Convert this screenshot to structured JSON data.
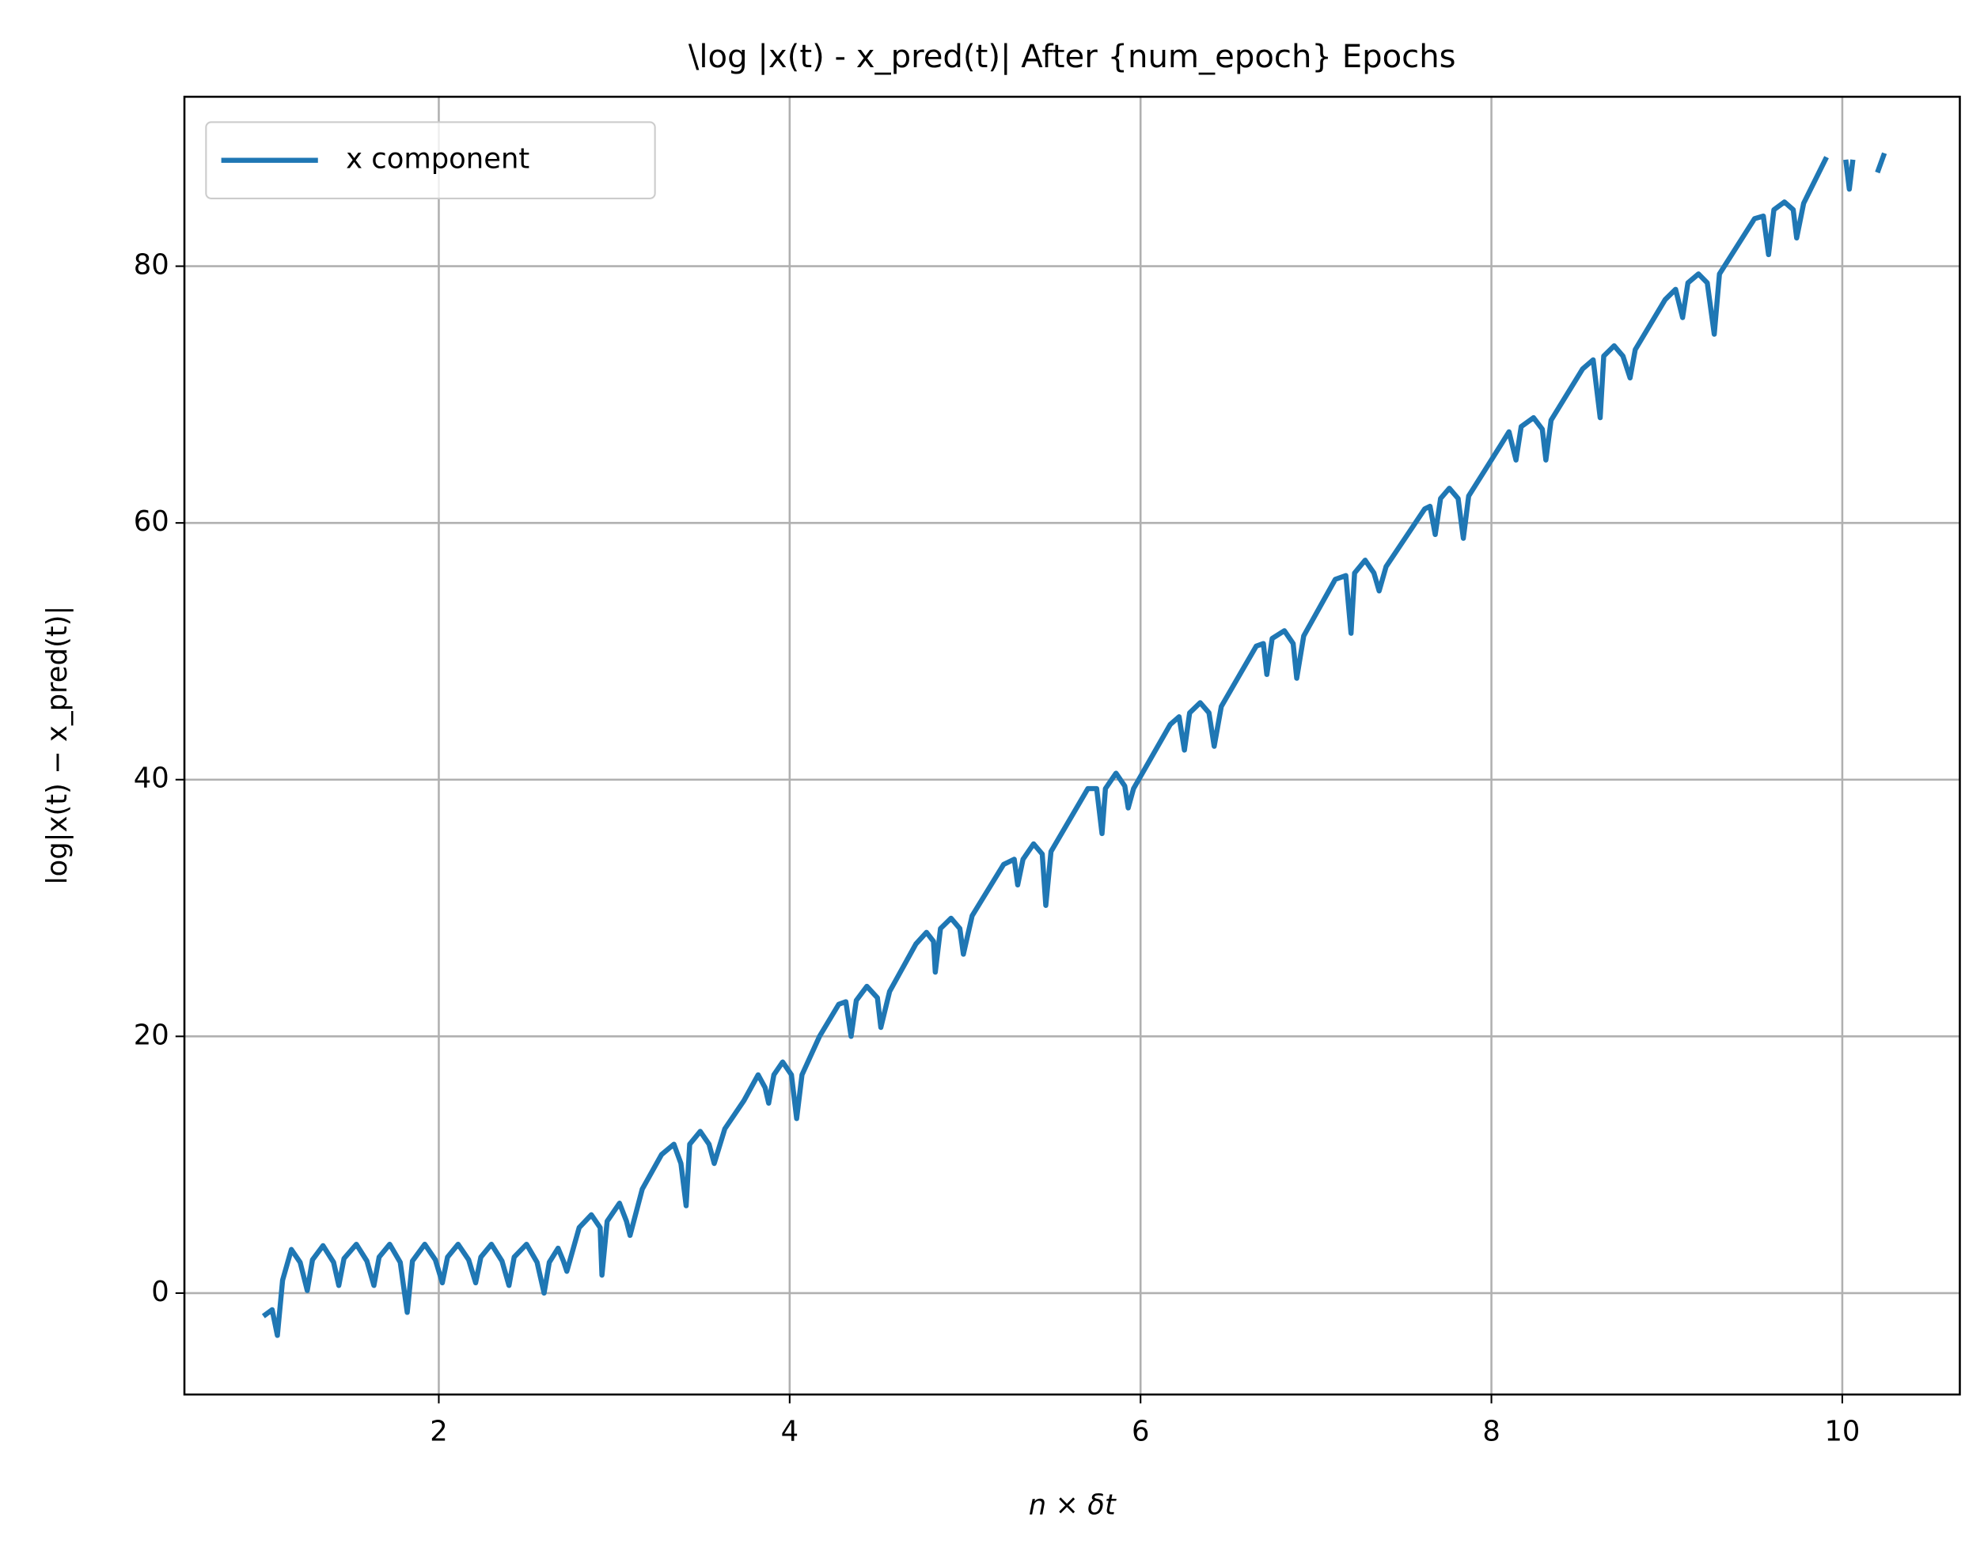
{
  "chart_data": {
    "type": "line",
    "title": "\\log |x(t) - x_pred(t)| After {num_epoch} Epochs",
    "x_label": "n × δt",
    "y_label": "log|x(t) − x_pred(t)|",
    "xlim": [
      0.55,
      10.67
    ],
    "ylim": [
      -7.9,
      93.2
    ],
    "xticks": [
      2,
      4,
      6,
      8,
      10
    ],
    "yticks": [
      0,
      20,
      40,
      60,
      80
    ],
    "grid": true,
    "legend": "upper left",
    "x": [
      1.0,
      1.05,
      1.08,
      1.11,
      1.16,
      1.21,
      1.25,
      1.28,
      1.34,
      1.4,
      1.43,
      1.46,
      1.53,
      1.59,
      1.63,
      1.66,
      1.72,
      1.78,
      1.82,
      1.85,
      1.92,
      1.98,
      2.02,
      2.05,
      2.11,
      2.17,
      2.21,
      2.24,
      2.3,
      2.36,
      2.4,
      2.43,
      2.5,
      2.56,
      2.6,
      2.63,
      2.68,
      2.71,
      2.73,
      2.8,
      2.87,
      2.92,
      2.93,
      2.96,
      3.03,
      3.07,
      3.09,
      3.16,
      3.27,
      3.34,
      3.38,
      3.41,
      3.43,
      3.49,
      3.54,
      3.57,
      3.63,
      3.74,
      3.82,
      3.86,
      3.88,
      3.91,
      3.96,
      4.01,
      4.04,
      4.07,
      4.17,
      4.28,
      4.32,
      4.35,
      4.38,
      4.44,
      4.5,
      4.52,
      4.57,
      4.72,
      4.78,
      4.82,
      4.83,
      4.86,
      4.92,
      4.97,
      4.99,
      5.04,
      5.22,
      5.28,
      5.3,
      5.33,
      5.39,
      5.44,
      5.46,
      5.49,
      5.7,
      5.75,
      5.78,
      5.8,
      5.86,
      5.91,
      5.93,
      5.96,
      6.17,
      6.22,
      6.25,
      6.28,
      6.34,
      6.39,
      6.42,
      6.46,
      6.66,
      6.7,
      6.72,
      6.75,
      6.82,
      6.87,
      6.89,
      6.93,
      7.11,
      7.17,
      7.2,
      7.22,
      7.28,
      7.33,
      7.36,
      7.4,
      7.62,
      7.65,
      7.68,
      7.71,
      7.76,
      7.81,
      7.84,
      7.87,
      8.05,
      8.1,
      8.14,
      8.17,
      8.24,
      8.29,
      8.31,
      8.34,
      8.52,
      8.58,
      8.62,
      8.64,
      8.7,
      8.75,
      8.79,
      8.82,
      8.99,
      9.05,
      9.09,
      9.12,
      9.18,
      9.23,
      9.27,
      9.3,
      9.5,
      9.55,
      9.58,
      9.61,
      9.67,
      9.72,
      9.74,
      9.78,
      9.91,
      null,
      10.02,
      10.04,
      10.06,
      null,
      10.2,
      10.24
    ],
    "series": [
      {
        "name": "x component",
        "color": "#1f77b4",
        "values": [
          -1.8,
          -1.3,
          -3.3,
          1.0,
          3.4,
          2.4,
          0.2,
          2.6,
          3.7,
          2.4,
          0.6,
          2.7,
          3.8,
          2.5,
          0.6,
          2.8,
          3.8,
          2.4,
          -1.5,
          2.5,
          3.8,
          2.6,
          0.8,
          2.8,
          3.8,
          2.6,
          0.8,
          2.8,
          3.8,
          2.5,
          0.6,
          2.8,
          3.8,
          2.4,
          0.0,
          2.4,
          3.5,
          2.5,
          1.7,
          5.1,
          6.1,
          5.1,
          1.4,
          5.6,
          7.0,
          5.6,
          4.5,
          8.1,
          10.8,
          11.6,
          10.1,
          6.8,
          11.6,
          12.6,
          11.6,
          10.1,
          12.8,
          15.0,
          17.0,
          16.0,
          14.8,
          17.0,
          18.0,
          17.0,
          13.6,
          17.0,
          20.0,
          22.5,
          22.7,
          20.0,
          22.8,
          23.9,
          23.0,
          20.7,
          23.5,
          27.2,
          28.1,
          27.4,
          25.0,
          28.4,
          29.2,
          28.4,
          26.4,
          29.4,
          33.4,
          33.8,
          31.8,
          33.8,
          35.0,
          34.2,
          30.2,
          34.4,
          39.3,
          39.3,
          35.8,
          39.3,
          40.5,
          39.5,
          37.8,
          39.3,
          44.3,
          44.9,
          42.3,
          45.2,
          46.0,
          45.2,
          42.6,
          45.7,
          50.4,
          50.6,
          48.2,
          51.0,
          51.6,
          50.6,
          47.9,
          51.2,
          55.6,
          55.9,
          51.4,
          56.1,
          57.1,
          56.1,
          54.7,
          56.6,
          61.1,
          61.3,
          59.1,
          61.9,
          62.7,
          61.9,
          58.8,
          62.1,
          66.0,
          67.1,
          64.9,
          67.5,
          68.2,
          67.3,
          64.9,
          68.0,
          72.0,
          72.7,
          68.2,
          73.0,
          73.8,
          73.0,
          71.3,
          73.5,
          77.4,
          78.2,
          76.0,
          78.7,
          79.4,
          78.7,
          74.7,
          79.4,
          83.7,
          83.9,
          80.9,
          84.4,
          85.0,
          84.4,
          82.2,
          84.9,
          88.5,
          null,
          88.3,
          86.0,
          88.3,
          null,
          87.3,
          88.8
        ]
      }
    ]
  }
}
